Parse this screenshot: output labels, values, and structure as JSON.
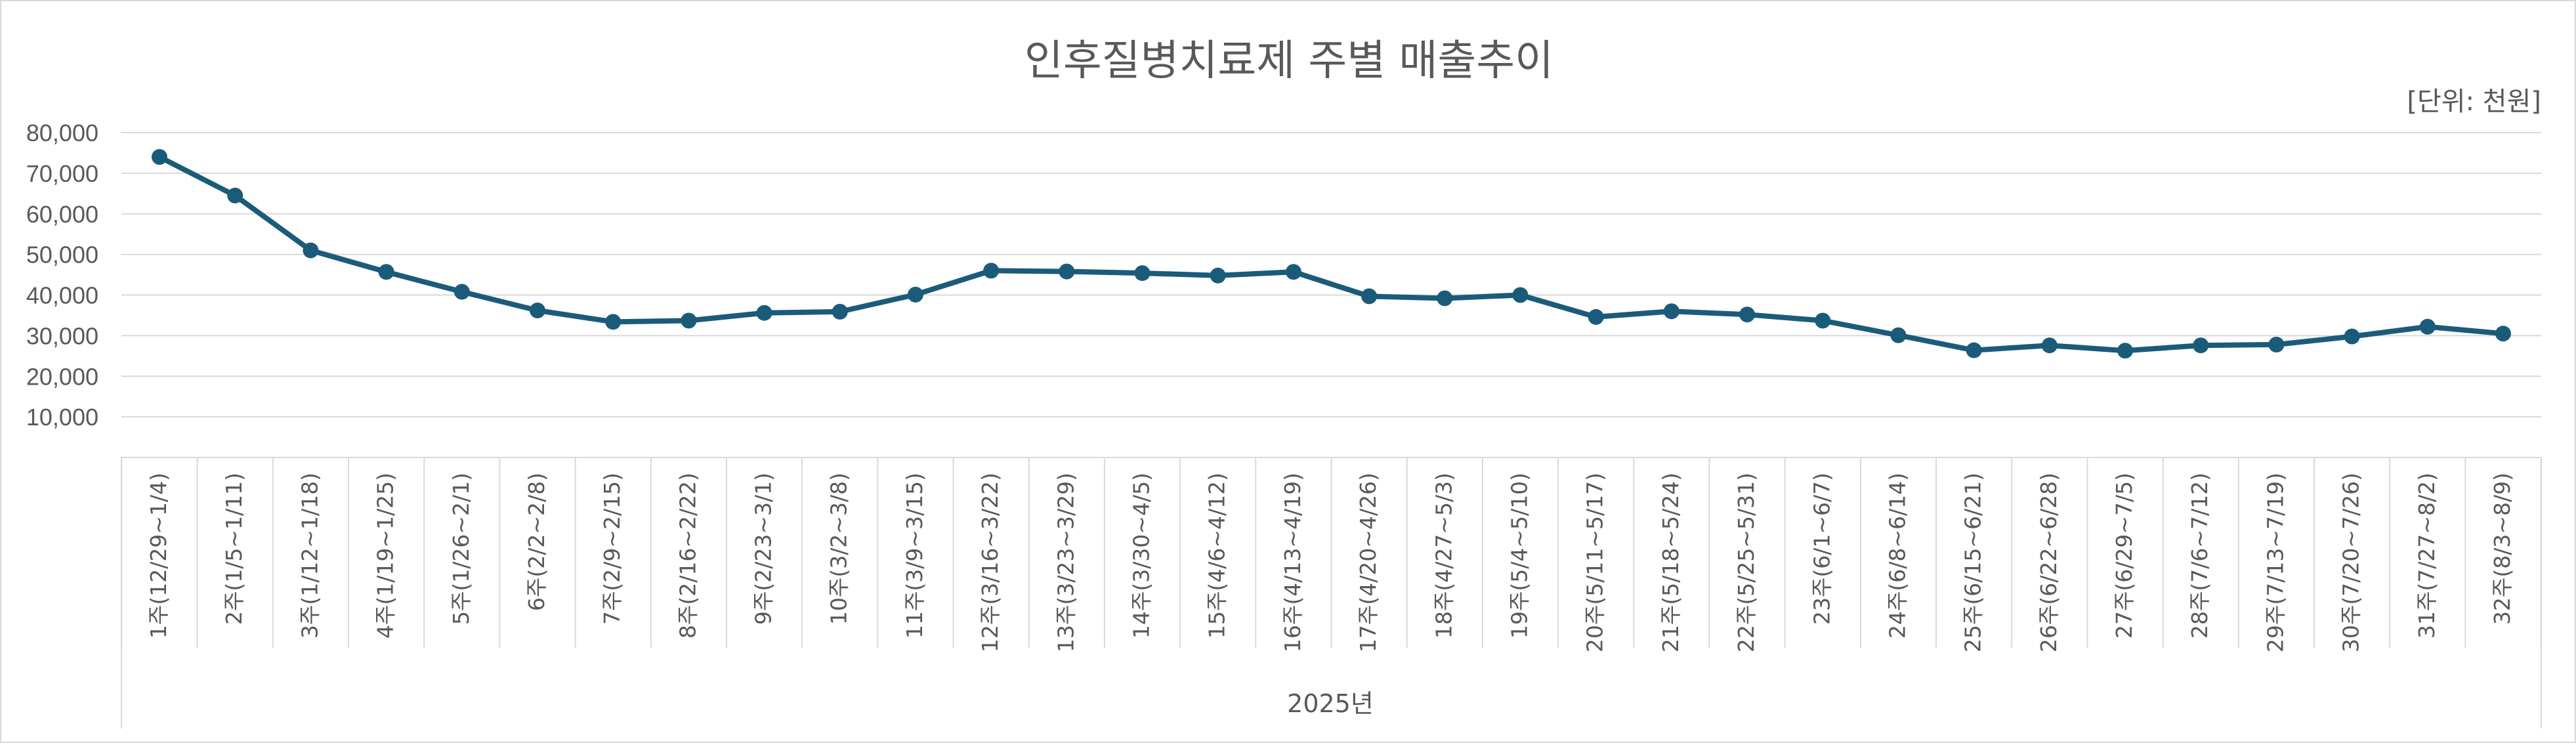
{
  "chart_data": {
    "type": "line",
    "title": "인후질병치료제 주별 매출추이",
    "unit_note": "[단위: 천원]",
    "group_label": "2025년",
    "color": "#1b5b7a",
    "ylim": [
      0,
      80000
    ],
    "yticks": [
      "10,000",
      "20,000",
      "30,000",
      "40,000",
      "50,000",
      "60,000",
      "70,000",
      "80,000"
    ],
    "ytick_values": [
      10000,
      20000,
      30000,
      40000,
      50000,
      60000,
      70000,
      80000
    ],
    "grid": true,
    "legend": false,
    "categories": [
      "1주(12/29~1/4)",
      "2주(1/5~1/11)",
      "3주(1/12~1/18)",
      "4주(1/19~1/25)",
      "5주(1/26~2/1)",
      "6주(2/2~2/8)",
      "7주(2/9~2/15)",
      "8주(2/16~2/22)",
      "9주(2/23~3/1)",
      "10주(3/2~3/8)",
      "11주(3/9~3/15)",
      "12주(3/16~3/22)",
      "13주(3/23~3/29)",
      "14주(3/30~4/5)",
      "15주(4/6~4/12)",
      "16주(4/13~4/19)",
      "17주(4/20~4/26)",
      "18주(4/27~5/3)",
      "19주(5/4~5/10)",
      "20주(5/11~5/17)",
      "21주(5/18~5/24)",
      "22주(5/25~5/31)",
      "23주(6/1~6/7)",
      "24주(6/8~6/14)",
      "25주(6/15~6/21)",
      "26주(6/22~6/28)",
      "27주(6/29~7/5)",
      "28주(7/6~7/12)",
      "29주(7/13~7/19)",
      "30주(7/20~7/26)",
      "31주(7/27~8/2)",
      "32주(8/3~8/9)"
    ],
    "values": [
      74000,
      64500,
      51000,
      45700,
      40800,
      36200,
      33400,
      33700,
      35600,
      35900,
      40100,
      46000,
      45800,
      45400,
      44800,
      45700,
      39700,
      39200,
      40000,
      34600,
      36000,
      35200,
      33700,
      30100,
      26400,
      27600,
      26300,
      27600,
      27800,
      29800,
      32200,
      30500
    ]
  }
}
